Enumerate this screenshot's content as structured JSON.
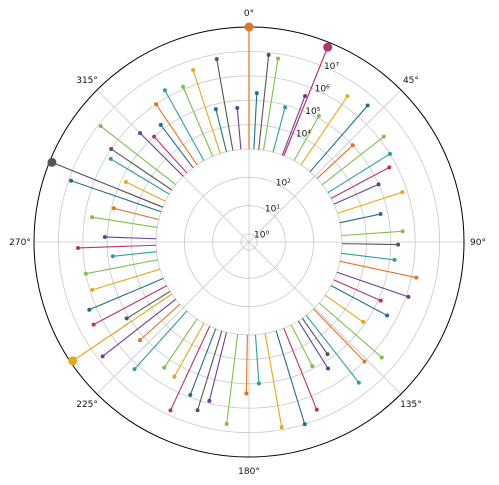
{
  "chart_data": {
    "type": "polar-stem",
    "title": "",
    "theta_direction": "clockwise",
    "theta_zero": "top",
    "theta_tick_labels": [
      "0°",
      "45°",
      "90°",
      "135°",
      "180°",
      "225°",
      "270°",
      "315°"
    ],
    "theta_ticks_deg": [
      0,
      45,
      90,
      135,
      180,
      225,
      270,
      315
    ],
    "r_scale": "log",
    "r_tick_labels": [
      "10⁰",
      "10¹",
      "10²",
      "10⁴",
      "10⁵",
      "10⁶",
      "10⁷"
    ],
    "r_tick_exponents": [
      0,
      1,
      2,
      4,
      5,
      6,
      7
    ],
    "r_max_exponent": 8,
    "r_baseline_exponent": 3,
    "grid": true,
    "palette": [
      "#1f6e8c",
      "#7fbf4d",
      "#2aa198",
      "#6a3d9a",
      "#e6a817",
      "#e37222",
      "#b8336a",
      "#555555"
    ],
    "highlighted_points": [
      {
        "theta_deg": 0,
        "r_exponent": 8.0,
        "color": "#e37222"
      },
      {
        "theta_deg": 22,
        "r_exponent": 7.8,
        "color": "#b8336a"
      },
      {
        "theta_deg": 292,
        "r_exponent": 7.9,
        "color": "#555555"
      },
      {
        "theta_deg": 236,
        "r_exponent": 7.9,
        "color": "#e6a817"
      }
    ],
    "series": [
      {
        "name": "",
        "color": "#1f6e8c",
        "theta_deg": [
          3,
          41,
          78,
          118,
          163,
          201,
          247,
          289,
          323,
          346
        ],
        "r_exponent": [
          5.3,
          6.6,
          4.7,
          5.6,
          7.0,
          5.9,
          6.3,
          6.9,
          5.2,
          4.8
        ]
      },
      {
        "name": "",
        "color": "#7fbf4d",
        "theta_deg": [
          9,
          29,
          52,
          86,
          131,
          153,
          187,
          214,
          259,
          279,
          308,
          337
        ],
        "r_exponent": [
          6.8,
          5.1,
          6.2,
          5.5,
          6.4,
          4.9,
          6.7,
          5.4,
          6.0,
          5.7,
          6.9,
          6.1
        ],
        "note": ""
      },
      {
        "name": "",
        "color": "#2aa198",
        "theta_deg": [
          15,
          58,
          97,
          142,
          176,
          222,
          264,
          301,
          331
        ],
        "r_exponent": [
          4.9,
          6.0,
          5.2,
          6.5,
          5.0,
          6.2,
          4.8,
          5.8,
          6.3
        ]
      },
      {
        "name": "",
        "color": "#6a3d9a",
        "theta_deg": [
          21,
          66,
          109,
          148,
          194,
          232,
          272,
          315,
          355
        ],
        "r_exponent": [
          5.6,
          5.0,
          6.1,
          5.3,
          5.9,
          6.8,
          5.1,
          5.5,
          4.7
        ]
      },
      {
        "name": "",
        "color": "#e6a817",
        "theta_deg": [
          34,
          72,
          125,
          170,
          209,
          253,
          296,
          342
        ],
        "r_exponent": [
          6.4,
          5.8,
          4.9,
          6.9,
          5.5,
          5.9,
          4.8,
          6.6
        ]
      },
      {
        "name": "",
        "color": "#e37222",
        "theta_deg": [
          47,
          102,
          136,
          181,
          228,
          284,
          326
        ],
        "r_exponent": [
          5.0,
          6.2,
          6.0,
          5.4,
          5.2,
          4.9,
          6.0
        ]
      },
      {
        "name": "",
        "color": "#b8336a",
        "theta_deg": [
          62,
          114,
          158,
          205,
          242,
          268,
          318
        ],
        "r_exponent": [
          5.7,
          5.1,
          6.6,
          6.8,
          6.4,
          6.2,
          5.0
        ]
      },
      {
        "name": "",
        "color": "#555555",
        "theta_deg": [
          6,
          91,
          145,
          197,
          238,
          304,
          350
        ],
        "r_exponent": [
          6.9,
          5.3,
          4.8,
          6.4,
          5.1,
          6.0,
          6.8
        ]
      }
    ]
  }
}
